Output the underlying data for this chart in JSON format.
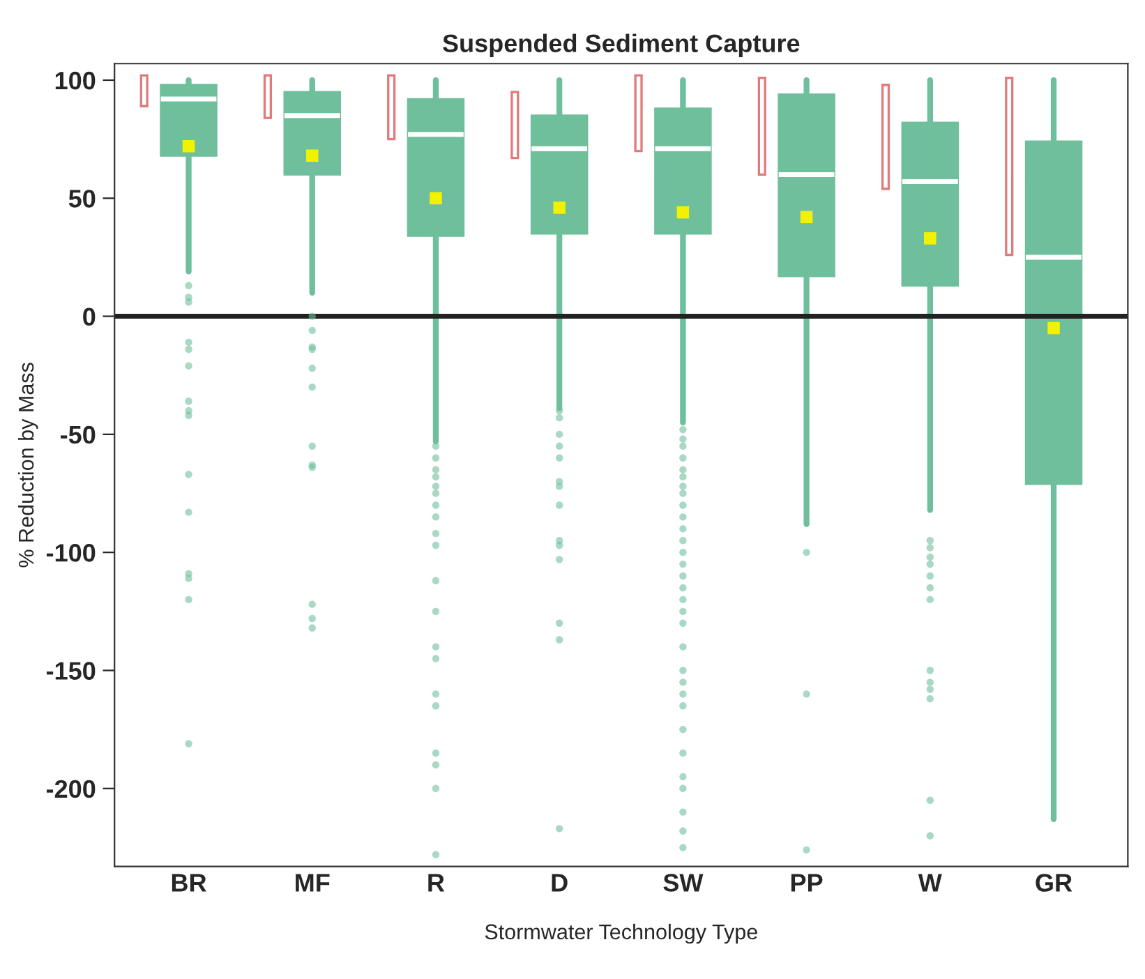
{
  "chart_data": {
    "type": "box",
    "title": "Suspended Sediment Capture",
    "xlabel": "Stormwater Technology Type",
    "ylabel": "% Reduction by Mass",
    "categories": [
      "BR",
      "MF",
      "R",
      "D",
      "SW",
      "PP",
      "W",
      "GR"
    ],
    "ylim": [
      -233,
      107
    ],
    "yticks": [
      100,
      50,
      0,
      -50,
      -100,
      -150,
      -200
    ],
    "grid": false,
    "legend": false,
    "ref_lines": [
      {
        "axis": "y",
        "value": 0,
        "color": "#222222"
      }
    ],
    "series": [
      {
        "color": "#6fbf9c",
        "boxes": [
          {
            "low": 19,
            "q1": 68,
            "median": 92,
            "q3": 98,
            "high": 100,
            "mean": 72,
            "outliers": [
              13,
              8,
              6,
              -11,
              -14,
              -21,
              -36,
              -40,
              -42,
              -67,
              -83,
              -109,
              -111,
              -120,
              -181
            ]
          },
          {
            "low": 10,
            "q1": 60,
            "median": 85,
            "q3": 95,
            "high": 100,
            "mean": 68,
            "outliers": [
              0,
              -6,
              -13,
              -14,
              -22,
              -30,
              -55,
              -63,
              -64,
              -122,
              -128,
              -132
            ]
          },
          {
            "low": -53,
            "q1": 34,
            "median": 77,
            "q3": 92,
            "high": 100,
            "mean": 50,
            "outliers": [
              -55,
              -60,
              -65,
              -68,
              -72,
              -75,
              -80,
              -85,
              -92,
              -97,
              -112,
              -125,
              -140,
              -145,
              -160,
              -165,
              -185,
              -190,
              -200,
              -228
            ]
          },
          {
            "low": -39,
            "q1": 35,
            "median": 71,
            "q3": 85,
            "high": 100,
            "mean": 46,
            "outliers": [
              -40,
              -43,
              -50,
              -55,
              -60,
              -70,
              -72,
              -80,
              -95,
              -97,
              -103,
              -130,
              -137,
              -217
            ]
          },
          {
            "low": -45,
            "q1": 35,
            "median": 71,
            "q3": 88,
            "high": 100,
            "mean": 44,
            "outliers": [
              -48,
              -52,
              -55,
              -60,
              -65,
              -68,
              -72,
              -75,
              -80,
              -85,
              -90,
              -95,
              -100,
              -105,
              -110,
              -115,
              -120,
              -125,
              -130,
              -140,
              -150,
              -155,
              -160,
              -165,
              -175,
              -185,
              -195,
              -200,
              -210,
              -218,
              -225
            ]
          },
          {
            "low": -88,
            "q1": 17,
            "median": 60,
            "q3": 94,
            "high": 100,
            "mean": 42,
            "outliers": [
              -100,
              -160,
              -226
            ]
          },
          {
            "low": -82,
            "q1": 13,
            "median": 57,
            "q3": 82,
            "high": 100,
            "mean": 33,
            "outliers": [
              -95,
              -98,
              -102,
              -105,
              -110,
              -115,
              -120,
              -150,
              -155,
              -158,
              -162,
              -205,
              -220
            ]
          },
          {
            "low": -213,
            "q1": -71,
            "median": 25,
            "q3": 74,
            "high": 100,
            "mean": -5
          }
        ]
      },
      {
        "type": "bar",
        "color": "#e07b7b",
        "base": [
          89,
          84,
          75,
          67,
          70,
          60,
          54,
          26
        ],
        "values": [
          13,
          18,
          27,
          28,
          32,
          41,
          44,
          75
        ]
      }
    ]
  }
}
